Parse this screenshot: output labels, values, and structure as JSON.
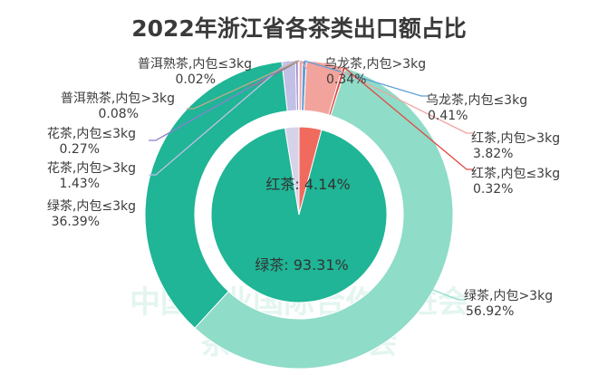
{
  "chart_data": {
    "type": "pie",
    "title": "2022年浙江省各茶类出口额占比",
    "outer_ring": [
      {
        "key": "puer_le3",
        "label": "普洱熟茶,内包≤3kg",
        "value": 0.02,
        "value_text": "0.02%",
        "color": "#8a7a6c"
      },
      {
        "key": "oolong_gt3",
        "label": "乌龙茶,内包>3kg",
        "value": 0.34,
        "value_text": "0.34%",
        "color": "#f0a3a6"
      },
      {
        "key": "oolong_le3",
        "label": "乌龙茶,内包≤3kg",
        "value": 0.41,
        "value_text": "0.41%",
        "color": "#5f9fd6"
      },
      {
        "key": "black_gt3",
        "label": "红茶,内包>3kg",
        "value": 3.82,
        "value_text": "3.82%",
        "color": "#f2a39c"
      },
      {
        "key": "black_le3",
        "label": "红茶,内包≤3kg",
        "value": 0.32,
        "value_text": "0.32%",
        "color": "#e24a44"
      },
      {
        "key": "green_gt3",
        "label": "绿茶,内包>3kg",
        "value": 56.92,
        "value_text": "56.92%",
        "color": "#8fdcc8"
      },
      {
        "key": "green_le3",
        "label": "绿茶,内包≤3kg",
        "value": 36.39,
        "value_text": "36.39%",
        "color": "#1fb596"
      },
      {
        "key": "flower_gt3",
        "label": "花茶,内包>3kg",
        "value": 1.43,
        "value_text": "1.43%",
        "color": "#c3c0e6"
      },
      {
        "key": "flower_le3",
        "label": "花茶,内包≤3kg",
        "value": 0.27,
        "value_text": "0.27%",
        "color": "#8c80d0"
      },
      {
        "key": "puer_gt3",
        "label": "普洱熟茶,内包>3kg",
        "value": 0.08,
        "value_text": "0.08%",
        "color": "#c6a98a"
      }
    ],
    "inner_pie": [
      {
        "key": "black",
        "label": "红茶: 4.14%",
        "value": 4.14,
        "color": "#f06a5e"
      },
      {
        "key": "green",
        "label": "绿茶: 93.31%",
        "value": 93.31,
        "color": "#1fb596"
      },
      {
        "key": "other",
        "label": "",
        "value": 2.55,
        "color": "#d6d2ea"
      }
    ]
  },
  "watermark": {
    "line1": "中国茶业国际合作促进会",
    "line2": "茶 产 业 分 会"
  }
}
